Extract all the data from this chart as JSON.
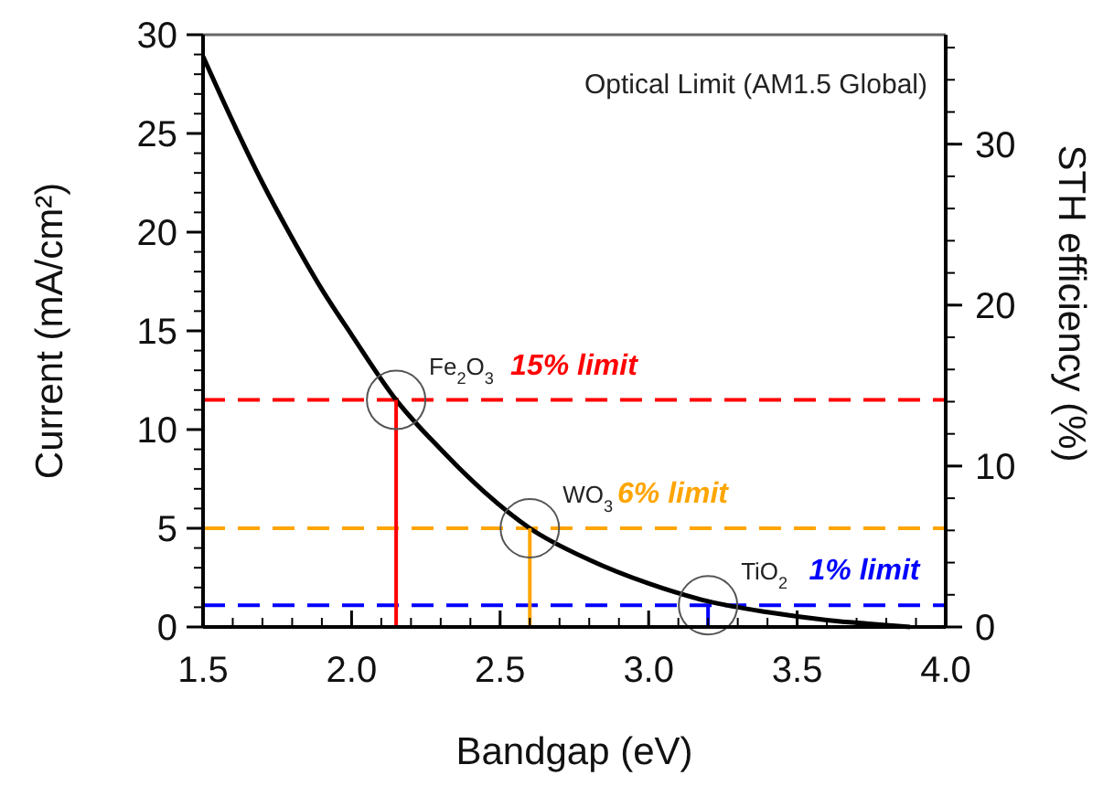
{
  "chart_data": {
    "type": "line",
    "xlabel": "Bandgap (eV)",
    "ylabel": "Current (mA/cm²)",
    "y2label": "STH efficiency (%)",
    "xlim": [
      1.5,
      4.0
    ],
    "xticks": [
      {
        "value": 1.5,
        "label": "1.5"
      },
      {
        "value": 2.0,
        "label": "2.0"
      },
      {
        "value": 2.5,
        "label": "2.5"
      },
      {
        "value": 3.0,
        "label": "3.0"
      },
      {
        "value": 3.5,
        "label": "3.5"
      },
      {
        "value": 4.0,
        "label": "4.0"
      }
    ],
    "ylim": [
      0,
      30
    ],
    "yticks": [
      0,
      5,
      10,
      15,
      20,
      25,
      30
    ],
    "y2lim": [
      0,
      36.8
    ],
    "y2ticks": [
      0,
      10,
      20,
      30
    ],
    "series": [
      {
        "color": "#000000",
        "x": [
          1.5,
          1.6,
          1.7,
          1.8,
          1.9,
          2.0,
          2.15,
          2.3,
          2.45,
          2.6,
          2.8,
          3.0,
          3.2,
          3.4,
          3.6,
          3.75,
          3.88
        ],
        "values": [
          28.9,
          25.6,
          22.5,
          19.7,
          17.1,
          14.8,
          11.5,
          9.0,
          6.8,
          5,
          3.4,
          2.2,
          1.3,
          0.75,
          0.35,
          0.15,
          0
        ]
      }
    ],
    "ref_lines": [
      {
        "axis": "y",
        "value": 11.5,
        "label": "15% limit",
        "color": "#ff0000",
        "line_style": "dashed"
      },
      {
        "axis": "y",
        "value": 5,
        "label": "6% limit",
        "color": "#ffa500",
        "line_style": "dashed"
      },
      {
        "axis": "y",
        "value": 1.1,
        "label": "1% limit",
        "color": "#0000ff",
        "line_style": "dashed"
      }
    ],
    "annotations": [
      "Optical Limit (AM1.5 Global)",
      {
        "text": "Fe$_{2}$O$_{3}$",
        "x": 2.15,
        "y": 11.5
      },
      {
        "text": "WO$_{3}$",
        "x": 2.6,
        "y": 5
      },
      {
        "text": "TiO$_{2}$",
        "x": 3.2,
        "y": 1.1
      }
    ],
    "grid": false,
    "line_style": "solid"
  }
}
